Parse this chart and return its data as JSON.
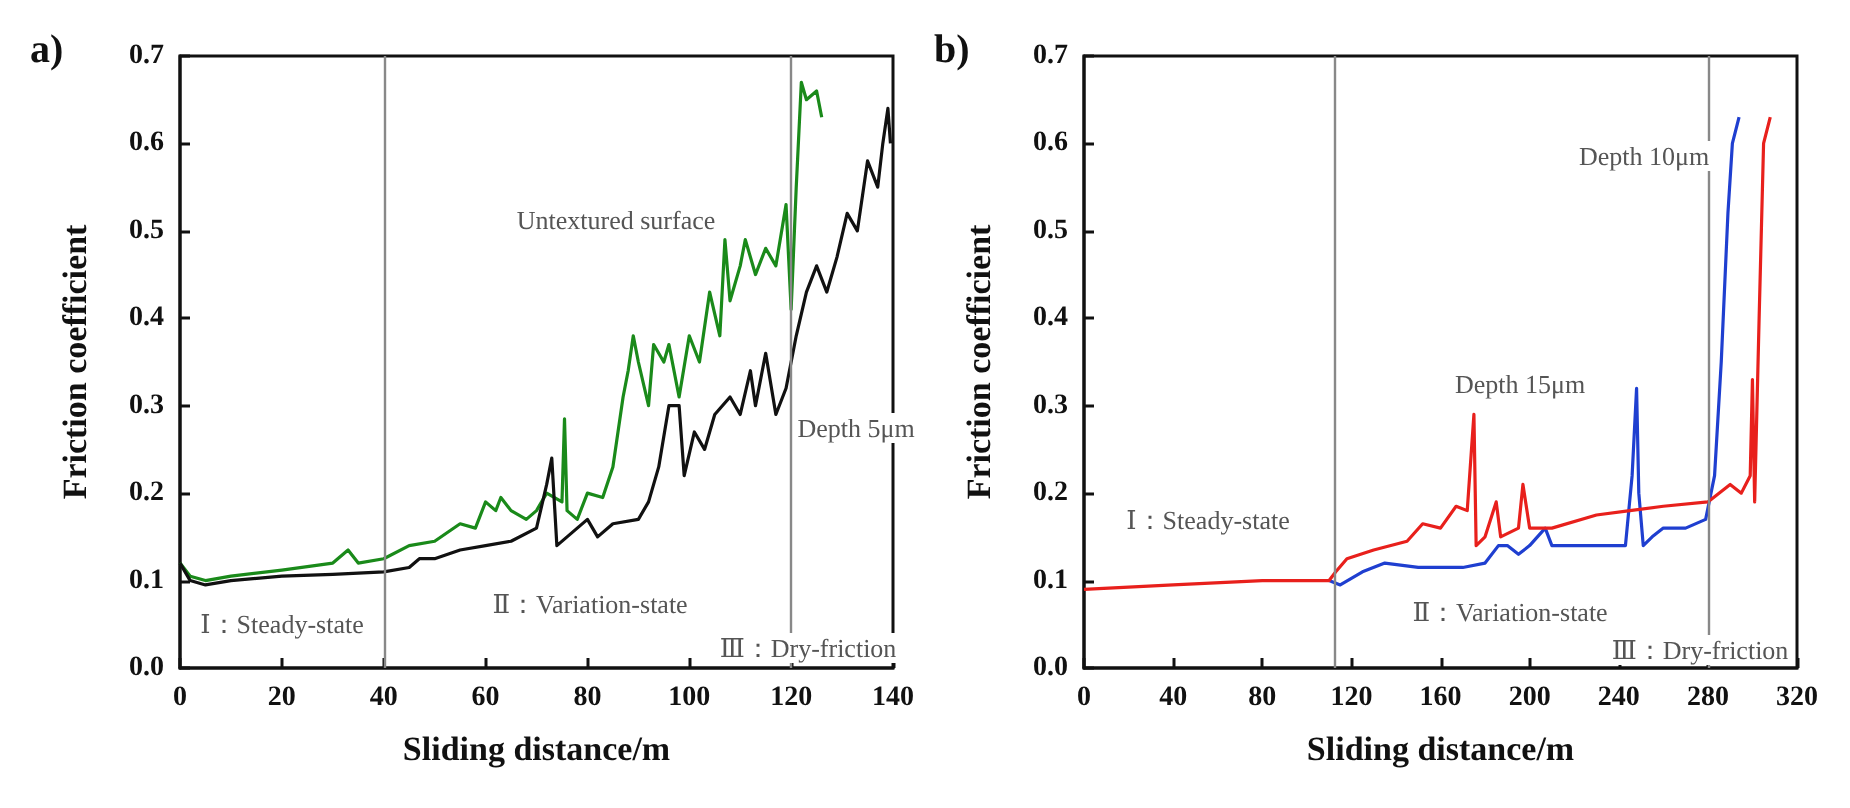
{
  "chart_data": [
    {
      "type": "line",
      "title": "a)",
      "xlabel": "Sliding distance/m",
      "ylabel": "Friction coefficient",
      "xlim": [
        0,
        140
      ],
      "xticks": [
        0,
        20,
        40,
        60,
        80,
        100,
        120,
        140
      ],
      "ylim": [
        0,
        0.7
      ],
      "yticks": [
        {
          "value": 0,
          "label": "0.0"
        },
        0.1,
        0.2,
        0.3,
        0.4,
        0.5,
        0.6,
        0.7
      ],
      "grid": false,
      "marker": "none",
      "line_style": "solid",
      "series": [
        {
          "name": "Untextured surface",
          "color": "#1a8a1a",
          "x": [
            0,
            2,
            5,
            10,
            20,
            30,
            33,
            35,
            40,
            45,
            50,
            55,
            58,
            60,
            62,
            63,
            65,
            68,
            70,
            72,
            75,
            75.5,
            76,
            78,
            80,
            83,
            85,
            87,
            88,
            89,
            90,
            92,
            93,
            95,
            96,
            98,
            100,
            102,
            104,
            106,
            107,
            108,
            110,
            111,
            113,
            115,
            117,
            119,
            120,
            121,
            122,
            123,
            125,
            126
          ],
          "values": [
            0.12,
            0.105,
            0.1,
            0.105,
            0.112,
            0.12,
            0.135,
            0.12,
            0.125,
            0.14,
            0.145,
            0.165,
            0.16,
            0.19,
            0.18,
            0.195,
            0.18,
            0.17,
            0.18,
            0.2,
            0.19,
            0.285,
            0.18,
            0.17,
            0.2,
            0.195,
            0.23,
            0.31,
            0.34,
            0.38,
            0.35,
            0.3,
            0.37,
            0.35,
            0.37,
            0.31,
            0.38,
            0.35,
            0.43,
            0.38,
            0.49,
            0.42,
            0.46,
            0.49,
            0.45,
            0.48,
            0.46,
            0.53,
            0.41,
            0.55,
            0.67,
            0.65,
            0.66,
            0.63
          ]
        },
        {
          "name": "Depth 5μm",
          "color": "#111111",
          "x": [
            0,
            2,
            5,
            10,
            20,
            30,
            40,
            45,
            47,
            50,
            55,
            60,
            65,
            70,
            72,
            73,
            74,
            76,
            78,
            80,
            82,
            85,
            90,
            92,
            94,
            96,
            98,
            99,
            101,
            103,
            105,
            108,
            110,
            112,
            113,
            115,
            117,
            119,
            121,
            123,
            125,
            127,
            129,
            131,
            133,
            135,
            137,
            138,
            139,
            139.5
          ],
          "values": [
            0.12,
            0.1,
            0.095,
            0.1,
            0.105,
            0.107,
            0.11,
            0.115,
            0.125,
            0.125,
            0.135,
            0.14,
            0.145,
            0.16,
            0.21,
            0.24,
            0.14,
            0.15,
            0.16,
            0.17,
            0.15,
            0.165,
            0.17,
            0.19,
            0.23,
            0.3,
            0.3,
            0.22,
            0.27,
            0.25,
            0.29,
            0.31,
            0.29,
            0.34,
            0.3,
            0.36,
            0.29,
            0.32,
            0.38,
            0.43,
            0.46,
            0.43,
            0.47,
            0.52,
            0.5,
            0.58,
            0.55,
            0.6,
            0.64,
            0.6
          ]
        }
      ],
      "ref_lines": [
        {
          "axis": "x",
          "value": 40,
          "label": null,
          "color": "#888888"
        },
        {
          "axis": "x",
          "value": 120,
          "label": null,
          "color": "#888888"
        }
      ],
      "annotations": [
        "Ⅰ：Steady-state",
        "Ⅱ：Variation-state",
        "Ⅲ：Dry-friction"
      ]
    },
    {
      "type": "line",
      "title": "b)",
      "xlabel": "Sliding distance/m",
      "ylabel": "Friction coefficient",
      "xlim": [
        0,
        320
      ],
      "xticks": [
        0,
        40,
        80,
        120,
        160,
        200,
        240,
        280,
        320
      ],
      "ylim": [
        0,
        0.7
      ],
      "yticks": [
        {
          "value": 0,
          "label": "0.0"
        },
        0.1,
        0.2,
        0.3,
        0.4,
        0.5,
        0.6,
        0.7
      ],
      "grid": false,
      "marker": "none",
      "line_style": "solid",
      "series": [
        {
          "name": "Depth 10μm",
          "color": "#1f3fd0",
          "x": [
            110,
            115,
            125,
            135,
            150,
            170,
            180,
            186,
            190,
            195,
            200,
            207,
            210,
            220,
            230,
            243,
            246,
            248,
            249,
            251,
            255,
            260,
            270,
            279,
            283,
            286,
            289,
            291,
            294
          ],
          "values": [
            0.1,
            0.095,
            0.11,
            0.12,
            0.115,
            0.115,
            0.12,
            0.14,
            0.14,
            0.13,
            0.14,
            0.16,
            0.14,
            0.14,
            0.14,
            0.14,
            0.22,
            0.32,
            0.2,
            0.14,
            0.15,
            0.16,
            0.16,
            0.17,
            0.22,
            0.35,
            0.52,
            0.6,
            0.63
          ]
        },
        {
          "name": "Depth 15μm",
          "color": "#e8201c",
          "x": [
            0,
            40,
            80,
            110,
            113,
            118,
            130,
            145,
            152,
            160,
            167,
            172,
            175,
            176,
            180,
            185,
            187,
            195,
            197,
            200,
            210,
            230,
            245,
            260,
            280,
            290,
            295,
            299,
            300,
            301,
            303,
            305,
            308
          ],
          "values": [
            0.09,
            0.095,
            0.1,
            0.1,
            0.11,
            0.125,
            0.135,
            0.145,
            0.165,
            0.16,
            0.185,
            0.18,
            0.29,
            0.14,
            0.15,
            0.19,
            0.15,
            0.16,
            0.21,
            0.16,
            0.16,
            0.175,
            0.18,
            0.185,
            0.19,
            0.21,
            0.2,
            0.22,
            0.33,
            0.19,
            0.4,
            0.6,
            0.63
          ]
        }
      ],
      "ref_lines": [
        {
          "axis": "x",
          "value": 112,
          "label": null,
          "color": "#888888"
        },
        {
          "axis": "x",
          "value": 280,
          "label": null,
          "color": "#888888"
        }
      ],
      "annotations": [
        "Ⅰ：Steady-state",
        "Ⅱ：Variation-state",
        "Ⅲ：Dry-friction"
      ]
    }
  ]
}
